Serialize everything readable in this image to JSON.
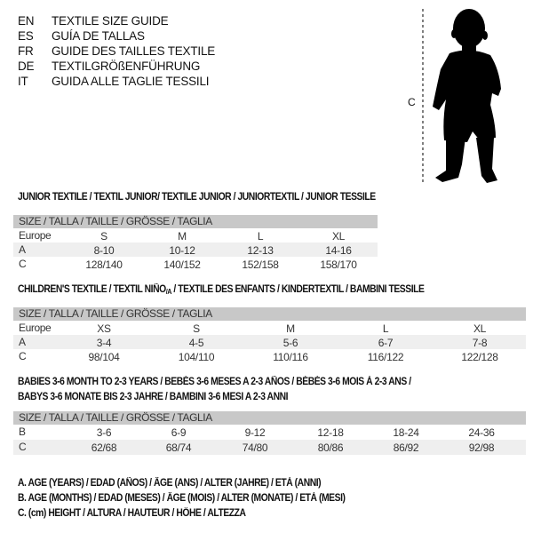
{
  "title_lines": [
    {
      "code": "EN",
      "text": "TEXTILE SIZE GUIDE"
    },
    {
      "code": "ES",
      "text": "GUÍA DE TALLAS"
    },
    {
      "code": "FR",
      "text": "GUIDE DES TAILLES TEXTILE"
    },
    {
      "code": "DE",
      "text": "TEXTILGRÖßENFÜHRUNG"
    },
    {
      "code": "IT",
      "text": "GUIDA ALLE TAGLIE TESSILI"
    }
  ],
  "figure": {
    "measure_label": "C"
  },
  "junior": {
    "title": "JUNIOR TEXTILE / TEXTIL JUNIOR/ TEXTILE JUNIOR / JUNIORTEXTIL / JUNIOR TESSILE",
    "header": "SIZE / TALLA / TAILLE / GRÖSSE / TAGLIA",
    "rows": [
      {
        "label": "Europe",
        "values": [
          "S",
          "M",
          "L",
          "XL"
        ]
      },
      {
        "label": "A",
        "values": [
          "8-10",
          "10-12",
          "12-13",
          "14-16"
        ]
      },
      {
        "label": "C",
        "values": [
          "128/140",
          "140/152",
          "152/158",
          "158/170"
        ]
      }
    ]
  },
  "children": {
    "title_pre": "CHILDREN'S TEXTILE / TEXTIL NIÑO",
    "title_sub": "/A",
    "title_post": " / TEXTILE DES ENFANTS / KINDERTEXTIL / BAMBINI TESSILE",
    "header": "SIZE / TALLA / TAILLE / GRÖSSE / TAGLIA",
    "rows": [
      {
        "label": "Europe",
        "values": [
          "XS",
          "S",
          "M",
          "L",
          "XL"
        ]
      },
      {
        "label": "A",
        "values": [
          "3-4",
          "4-5",
          "5-6",
          "6-7",
          "7-8"
        ]
      },
      {
        "label": "C",
        "values": [
          "98/104",
          "104/110",
          "110/116",
          "116/122",
          "122/128"
        ]
      }
    ]
  },
  "babies": {
    "title_line1": "BABIES 3-6 MONTH TO 2-3 YEARS / BEBÉS 3-6 MESES A 2-3 AÑOS / BÉBÉS 3-6 MOIS À 2-3 ANS /",
    "title_line2": "BABYS 3-6 MONATE BIS 2-3 JAHRE / BAMBINI 3-6 MESI A 2-3 ANNI",
    "header": "SIZE / TALLA / TAILLE / GRÖSSE / TAGLIA",
    "rows": [
      {
        "label": "B",
        "values": [
          "3-6",
          "6-9",
          "9-12",
          "12-18",
          "18-24",
          "24-36"
        ]
      },
      {
        "label": "C",
        "values": [
          "62/68",
          "68/74",
          "74/80",
          "80/86",
          "86/92",
          "92/98"
        ]
      }
    ]
  },
  "legend": [
    "A. AGE (YEARS) / EDAD (AÑOS) / ÂGE (ANS) / ALTER (JAHRE) / ETÀ (ANNI)",
    "B. AGE (MONTHS) / EDAD (MESES) / ÂGE (MOIS) / ALTER (MONATE) / ETÀ (MESI)",
    "C. (cm) HEIGHT / ALTURA / HAUTEUR / HÖHE / ALTEZZA"
  ]
}
